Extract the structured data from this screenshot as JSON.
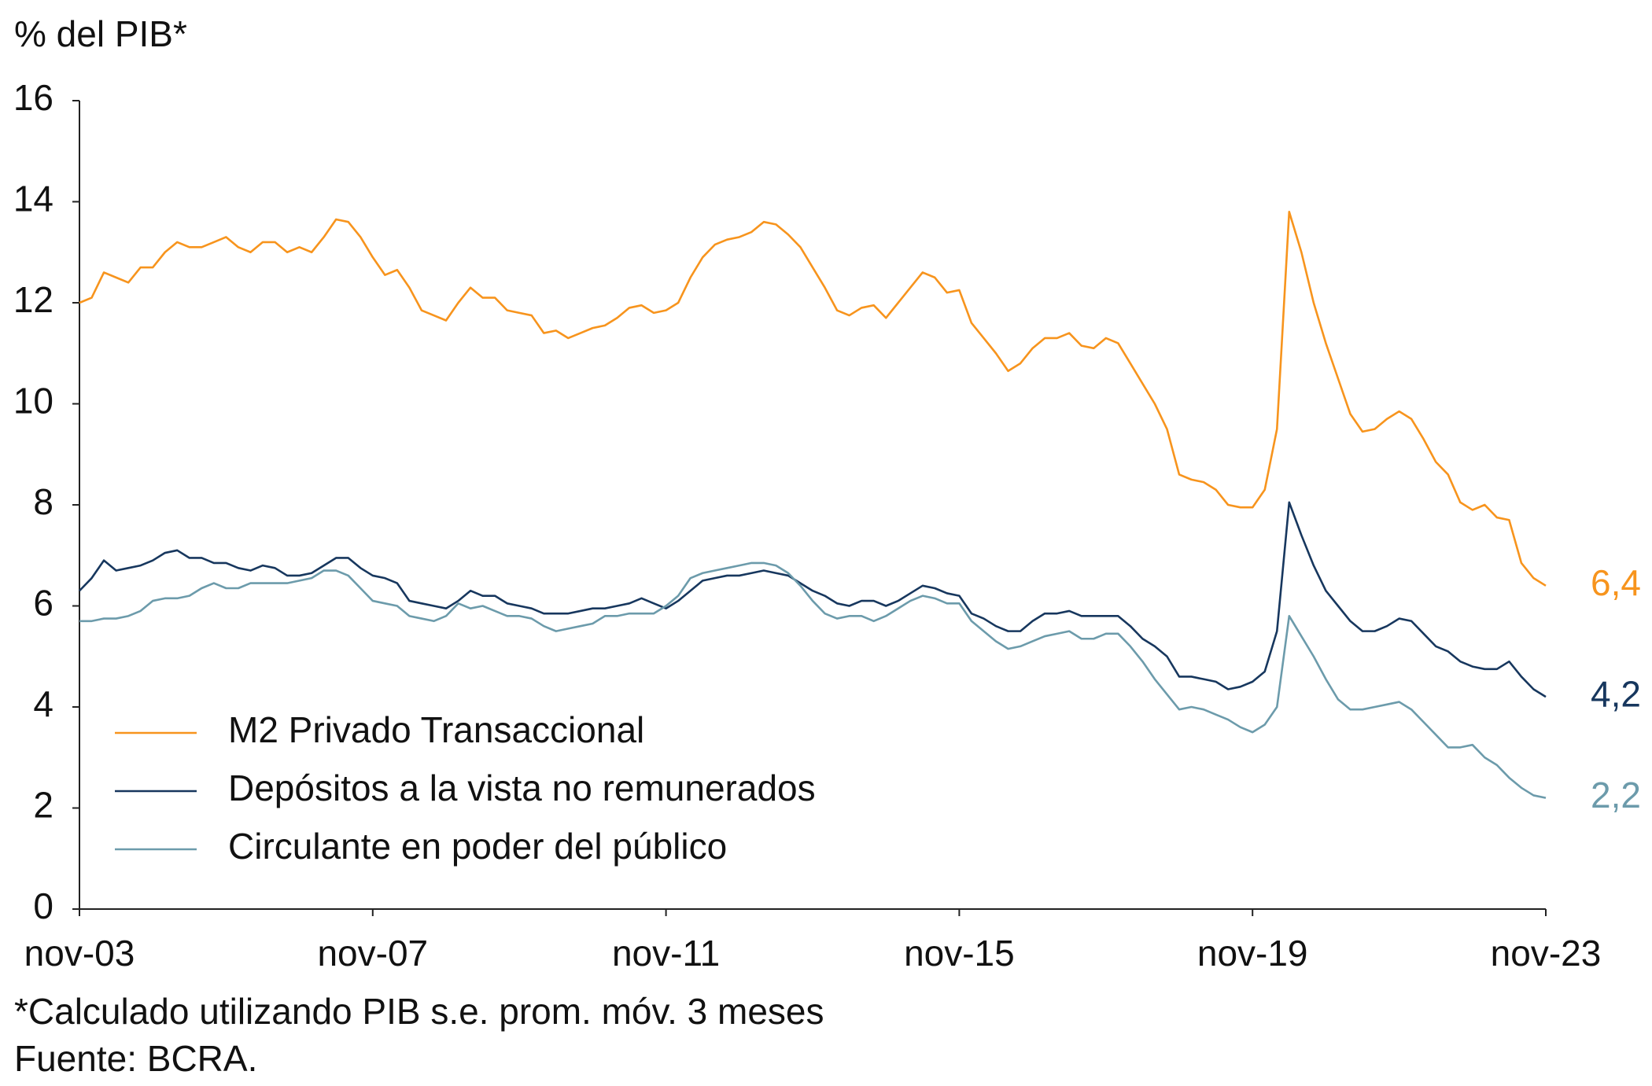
{
  "chart_data": {
    "type": "line",
    "title": "% del PIB*",
    "footnote": "*Calculado utilizando PIB s.e. prom. móv. 3 meses",
    "source": "Fuente: BCRA.",
    "categories": [
      "nov-03",
      null,
      null,
      null,
      null,
      null,
      null,
      null,
      null,
      null,
      null,
      null,
      null,
      null,
      null,
      null,
      null,
      null,
      null,
      null,
      null,
      null,
      null,
      null,
      "nov-07",
      null,
      null,
      null,
      null,
      null,
      null,
      null,
      null,
      null,
      null,
      null,
      null,
      null,
      null,
      null,
      null,
      null,
      null,
      null,
      null,
      null,
      null,
      null,
      "nov-11",
      null,
      null,
      null,
      null,
      null,
      null,
      null,
      null,
      null,
      null,
      null,
      null,
      null,
      null,
      null,
      null,
      null,
      null,
      null,
      null,
      null,
      null,
      null,
      "nov-15",
      null,
      null,
      null,
      null,
      null,
      null,
      null,
      null,
      null,
      null,
      null,
      null,
      null,
      null,
      null,
      null,
      null,
      null,
      null,
      null,
      null,
      null,
      null,
      "nov-19",
      null,
      null,
      null,
      null,
      null,
      null,
      null,
      null,
      null,
      null,
      null,
      null,
      null,
      null,
      null,
      null,
      null,
      null,
      null,
      null,
      null,
      null,
      null,
      "nov-23"
    ],
    "series": [
      {
        "name": "M2 Privado Transaccional",
        "color": "#f7941d",
        "end_label": "6,4",
        "values": [
          12.0,
          12.1,
          12.6,
          12.5,
          12.4,
          12.7,
          12.7,
          13.0,
          13.2,
          13.1,
          13.1,
          13.2,
          13.3,
          13.1,
          13.0,
          13.2,
          13.2,
          13.0,
          13.1,
          13.0,
          13.3,
          13.65,
          13.6,
          13.3,
          12.9,
          12.55,
          12.65,
          12.3,
          11.85,
          11.75,
          11.65,
          12.0,
          12.3,
          12.1,
          12.1,
          11.85,
          11.8,
          11.75,
          11.4,
          11.45,
          11.3,
          11.4,
          11.5,
          11.55,
          11.7,
          11.9,
          11.95,
          11.8,
          11.85,
          12.0,
          12.5,
          12.9,
          13.15,
          13.25,
          13.3,
          13.4,
          13.6,
          13.55,
          13.35,
          13.1,
          12.7,
          12.3,
          11.85,
          11.75,
          11.9,
          11.95,
          11.7,
          12.0,
          12.3,
          12.6,
          12.5,
          12.2,
          12.25,
          11.6,
          11.3,
          11.0,
          10.65,
          10.8,
          11.1,
          11.3,
          11.3,
          11.4,
          11.15,
          11.1,
          11.3,
          11.2,
          10.8,
          10.4,
          10.0,
          9.5,
          8.6,
          8.5,
          8.45,
          8.3,
          8.0,
          7.95,
          7.95,
          8.3,
          9.5,
          13.8,
          13.0,
          12.0,
          11.2,
          10.5,
          9.8,
          9.45,
          9.5,
          9.7,
          9.85,
          9.7,
          9.3,
          8.85,
          8.6,
          8.05,
          7.9,
          8.0,
          7.75,
          7.7,
          6.85,
          6.55,
          6.4
        ]
      },
      {
        "name": "Depósitos a la vista no remunerados",
        "color": "#17375e",
        "end_label": "4,2",
        "values": [
          6.3,
          6.55,
          6.9,
          6.7,
          6.75,
          6.8,
          6.9,
          7.05,
          7.1,
          6.95,
          6.95,
          6.85,
          6.85,
          6.75,
          6.7,
          6.8,
          6.75,
          6.6,
          6.6,
          6.65,
          6.8,
          6.95,
          6.95,
          6.75,
          6.6,
          6.55,
          6.45,
          6.1,
          6.05,
          6.0,
          5.95,
          6.1,
          6.3,
          6.2,
          6.2,
          6.05,
          6.0,
          5.95,
          5.85,
          5.85,
          5.85,
          5.9,
          5.95,
          5.95,
          6.0,
          6.05,
          6.15,
          6.05,
          5.95,
          6.1,
          6.3,
          6.5,
          6.55,
          6.6,
          6.6,
          6.65,
          6.7,
          6.65,
          6.6,
          6.45,
          6.3,
          6.2,
          6.05,
          6.0,
          6.1,
          6.1,
          6.0,
          6.1,
          6.25,
          6.4,
          6.35,
          6.25,
          6.2,
          5.85,
          5.75,
          5.6,
          5.5,
          5.5,
          5.7,
          5.85,
          5.85,
          5.9,
          5.8,
          5.8,
          5.8,
          5.8,
          5.6,
          5.35,
          5.2,
          5.0,
          4.6,
          4.6,
          4.55,
          4.5,
          4.35,
          4.4,
          4.5,
          4.7,
          5.5,
          8.05,
          7.4,
          6.8,
          6.3,
          6.0,
          5.7,
          5.5,
          5.5,
          5.6,
          5.75,
          5.7,
          5.45,
          5.2,
          5.1,
          4.9,
          4.8,
          4.75,
          4.75,
          4.9,
          4.6,
          4.35,
          4.2
        ]
      },
      {
        "name": "Circulante en poder del público",
        "color": "#6c9bab",
        "end_label": "2,2",
        "values": [
          5.7,
          5.7,
          5.75,
          5.75,
          5.8,
          5.9,
          6.1,
          6.15,
          6.15,
          6.2,
          6.35,
          6.45,
          6.35,
          6.35,
          6.45,
          6.45,
          6.45,
          6.45,
          6.5,
          6.55,
          6.7,
          6.7,
          6.6,
          6.35,
          6.1,
          6.05,
          6.0,
          5.8,
          5.75,
          5.7,
          5.8,
          6.05,
          5.95,
          6.0,
          5.9,
          5.8,
          5.8,
          5.75,
          5.6,
          5.5,
          5.55,
          5.6,
          5.65,
          5.8,
          5.8,
          5.85,
          5.85,
          5.85,
          6.0,
          6.2,
          6.55,
          6.65,
          6.7,
          6.75,
          6.8,
          6.85,
          6.85,
          6.8,
          6.65,
          6.4,
          6.1,
          5.85,
          5.75,
          5.8,
          5.8,
          5.7,
          5.8,
          5.95,
          6.1,
          6.2,
          6.15,
          6.05,
          6.05,
          5.7,
          5.5,
          5.3,
          5.15,
          5.2,
          5.3,
          5.4,
          5.45,
          5.5,
          5.35,
          5.35,
          5.45,
          5.45,
          5.2,
          4.9,
          4.55,
          4.25,
          3.95,
          4.0,
          3.95,
          3.85,
          3.75,
          3.6,
          3.5,
          3.65,
          4.0,
          5.8,
          5.4,
          5.0,
          4.55,
          4.15,
          3.95,
          3.95,
          4.0,
          4.05,
          4.1,
          3.95,
          3.7,
          3.45,
          3.2,
          3.2,
          3.25,
          3.0,
          2.85,
          2.6,
          2.4,
          2.25,
          2.2
        ]
      }
    ],
    "ylim": [
      0,
      16
    ],
    "yticks": [
      0,
      2,
      4,
      6,
      8,
      10,
      12,
      14,
      16
    ],
    "grid": false,
    "legend": "lower left"
  }
}
